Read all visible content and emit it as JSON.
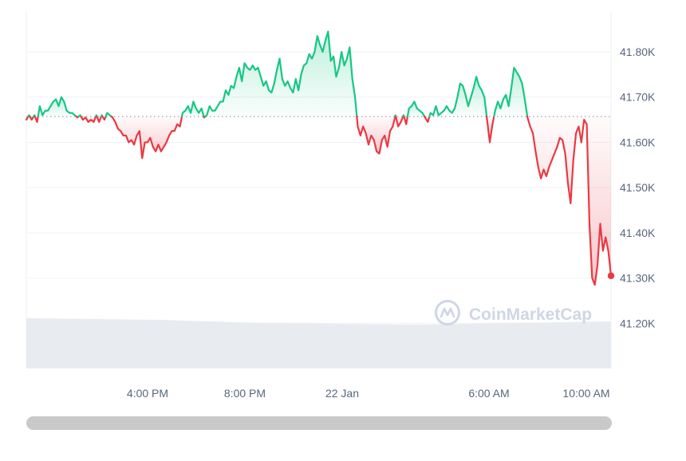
{
  "chart_data": {
    "type": "line",
    "xlabel": "",
    "ylabel": "",
    "x_ticks": [
      "4:00 PM",
      "8:00 PM",
      "22 Jan",
      "6:00 AM",
      "10:00 AM"
    ],
    "y_ticks": [
      "41.20K",
      "41.30K",
      "41.40K",
      "41.50K",
      "41.60K",
      "41.70K",
      "41.80K"
    ],
    "ylim": [
      41.1,
      41.89
    ],
    "baseline": 41.657,
    "baseline_label": "",
    "grid": true,
    "legend": "none",
    "colors": {
      "up": "#16c784",
      "down": "#ea3943",
      "grid": "#eff2f5",
      "volume": "#e8ebf0"
    },
    "series": [
      {
        "values": [
          41.65,
          41.66,
          41.65,
          41.66,
          41.645,
          41.68,
          41.66,
          41.67,
          41.67,
          41.68,
          41.69,
          41.695,
          41.68,
          41.7,
          41.69,
          41.67,
          41.665,
          41.665,
          41.66,
          41.655,
          41.66,
          41.65,
          41.655,
          41.645,
          41.65,
          41.645,
          41.66,
          41.645,
          41.66,
          41.65,
          41.665,
          41.66,
          41.655,
          41.645,
          41.63,
          41.625,
          41.615,
          41.615,
          41.6,
          41.605,
          41.595,
          41.615,
          41.625,
          41.565,
          41.6,
          41.6,
          41.61,
          41.59,
          41.58,
          41.595,
          41.58,
          41.59,
          41.6,
          41.615,
          41.625,
          41.625,
          41.64,
          41.635,
          41.665,
          41.67,
          41.68,
          41.665,
          41.69,
          41.675,
          41.665,
          41.675,
          41.655,
          41.66,
          41.68,
          41.67,
          41.67,
          41.68,
          41.69,
          41.69,
          41.715,
          41.705,
          41.725,
          41.72,
          41.745,
          41.765,
          41.735,
          41.775,
          41.765,
          41.76,
          41.77,
          41.76,
          41.765,
          41.745,
          41.725,
          41.735,
          41.715,
          41.71,
          41.73,
          41.76,
          41.785,
          41.74,
          41.725,
          41.735,
          41.72,
          41.71,
          41.74,
          41.715,
          41.75,
          41.77,
          41.775,
          41.795,
          41.785,
          41.8,
          41.835,
          41.815,
          41.8,
          41.825,
          41.845,
          41.78,
          41.79,
          41.745,
          41.765,
          41.8,
          41.77,
          41.785,
          41.81,
          41.74,
          41.7,
          41.635,
          41.615,
          41.635,
          41.62,
          41.595,
          41.615,
          41.605,
          41.58,
          41.575,
          41.605,
          41.615,
          41.59,
          41.625,
          41.635,
          41.66,
          41.635,
          41.645,
          41.66,
          41.64,
          41.675,
          41.68,
          41.69,
          41.675,
          41.67,
          41.665,
          41.655,
          41.645,
          41.665,
          41.66,
          41.68,
          41.66,
          41.665,
          41.67,
          41.68,
          41.67,
          41.665,
          41.675,
          41.7,
          41.73,
          41.725,
          41.705,
          41.68,
          41.7,
          41.72,
          41.745,
          41.725,
          41.715,
          41.7,
          41.65,
          41.6,
          41.64,
          41.67,
          41.69,
          41.675,
          41.695,
          41.705,
          41.68,
          41.72,
          41.765,
          41.755,
          41.745,
          41.73,
          41.695,
          41.655,
          41.635,
          41.62,
          41.58,
          41.545,
          41.52,
          41.54,
          41.525,
          41.545,
          41.56,
          41.575,
          41.59,
          41.61,
          41.605,
          41.575,
          41.51,
          41.465,
          41.56,
          41.62,
          41.635,
          41.6,
          41.65,
          41.64,
          41.42,
          41.3,
          41.285,
          41.33,
          41.42,
          41.36,
          41.39,
          41.36,
          41.305
        ]
      }
    ]
  },
  "watermark": {
    "text": "CoinMarketCap",
    "icon": "coinmarketcap-logo-icon"
  }
}
